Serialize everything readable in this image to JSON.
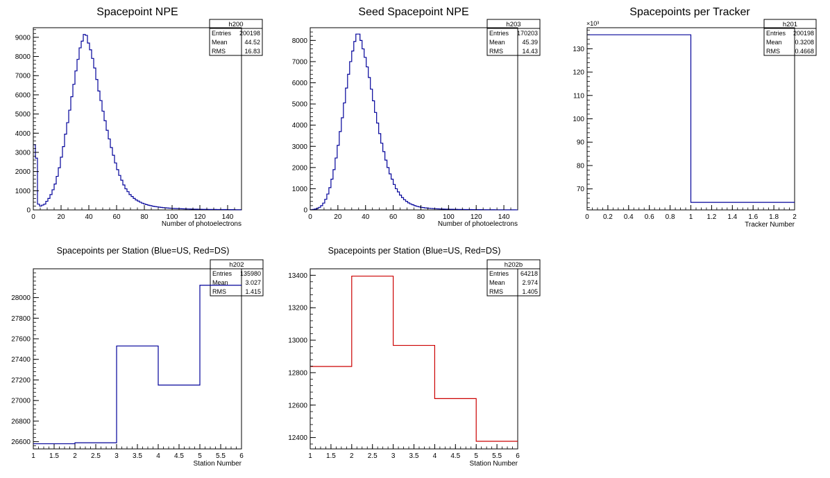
{
  "chart_data": [
    {
      "type": "histogram",
      "title": "Spacepoint NPE",
      "xlabel": "Number of photoelectrons",
      "ylabel": "",
      "xlim": [
        0,
        150
      ],
      "ylim": [
        0,
        9500
      ],
      "xticks": [
        "0",
        "20",
        "40",
        "60",
        "80",
        "100",
        "120",
        "140"
      ],
      "yticks": [
        "0",
        "1000",
        "2000",
        "3000",
        "4000",
        "5000",
        "6000",
        "7000",
        "8000",
        "9000"
      ],
      "bin_width": 1.5,
      "color": "#000099",
      "values": [
        3400,
        2700,
        300,
        200,
        250,
        300,
        450,
        600,
        800,
        1050,
        1350,
        1750,
        2200,
        2750,
        3300,
        3950,
        4550,
        5200,
        5900,
        6550,
        7250,
        7850,
        8450,
        8800,
        9150,
        9100,
        8700,
        8350,
        7900,
        7400,
        6800,
        6200,
        5700,
        5150,
        4650,
        4150,
        3700,
        3250,
        2850,
        2450,
        2100,
        1800,
        1550,
        1300,
        1100,
        950,
        800,
        700,
        600,
        520,
        460,
        400,
        350,
        310,
        275,
        245,
        220,
        195,
        175,
        160,
        145,
        130,
        118,
        108,
        99,
        91,
        84,
        78,
        72,
        67,
        62,
        58,
        54,
        50,
        47,
        44,
        41,
        38,
        36,
        34,
        32,
        30,
        28,
        26,
        25,
        24,
        23,
        22,
        21,
        20,
        19,
        18,
        17,
        16,
        15,
        14,
        13,
        12,
        11,
        10
      ],
      "stats": {
        "name": "h200",
        "rows": [
          [
            "Entries",
            "200198"
          ],
          [
            "Mean",
            "44.52"
          ],
          [
            "RMS",
            "16.83"
          ]
        ]
      }
    },
    {
      "type": "histogram",
      "title": "Seed Spacepoint NPE",
      "xlabel": "Number of photoelectrons",
      "ylabel": "",
      "xlim": [
        0,
        150
      ],
      "ylim": [
        0,
        8600
      ],
      "xticks": [
        "0",
        "20",
        "40",
        "60",
        "80",
        "100",
        "120",
        "140"
      ],
      "yticks": [
        "0",
        "1000",
        "2000",
        "3000",
        "4000",
        "5000",
        "6000",
        "7000",
        "8000"
      ],
      "bin_width": 1.5,
      "color": "#000099",
      "values": [
        10,
        20,
        40,
        70,
        120,
        200,
        320,
        500,
        750,
        1050,
        1450,
        1900,
        2450,
        3050,
        3700,
        4350,
        5050,
        5750,
        6400,
        7000,
        7500,
        7950,
        8300,
        8300,
        8000,
        7600,
        7200,
        6750,
        6250,
        5700,
        5150,
        4600,
        4100,
        3600,
        3150,
        2750,
        2350,
        2000,
        1700,
        1450,
        1200,
        1000,
        850,
        700,
        580,
        480,
        400,
        330,
        280,
        240,
        200,
        170,
        145,
        125,
        110,
        95,
        85,
        75,
        68,
        61,
        55,
        50,
        46,
        42,
        38,
        35,
        32,
        30,
        28,
        26,
        24,
        22,
        21,
        20,
        19,
        18,
        17,
        16,
        15,
        14,
        13,
        12,
        11,
        10,
        10,
        9,
        9,
        8,
        8,
        7,
        7,
        6,
        6,
        5,
        5,
        4,
        4,
        3,
        3,
        2
      ],
      "stats": {
        "name": "h203",
        "rows": [
          [
            "Entries",
            "170203"
          ],
          [
            "Mean",
            "45.39"
          ],
          [
            "RMS",
            "14.43"
          ]
        ]
      }
    },
    {
      "type": "histogram",
      "title": "Spacepoints per Tracker",
      "xlabel": "Tracker Number",
      "ylabel": "",
      "exponent_label": "×10³",
      "xlim": [
        0,
        2
      ],
      "ylim": [
        61,
        139
      ],
      "xticks": [
        "0",
        "0.2",
        "0.4",
        "0.6",
        "0.8",
        "1",
        "1.2",
        "1.4",
        "1.6",
        "1.8",
        "2"
      ],
      "yticks": [
        "70",
        "80",
        "90",
        "100",
        "110",
        "120",
        "130"
      ],
      "bin_width": 1,
      "color": "#000099",
      "values": [
        135.98,
        64.218
      ],
      "stats": {
        "name": "h201",
        "rows": [
          [
            "Entries",
            "200198"
          ],
          [
            "Mean",
            "0.3208"
          ],
          [
            "RMS",
            "0.4668"
          ]
        ]
      }
    },
    {
      "type": "histogram",
      "title": "Spacepoints per Station (Blue=US, Red=DS)",
      "xlabel": "Station Number",
      "ylabel": "",
      "xlim": [
        1,
        6
      ],
      "ylim": [
        26530,
        28280
      ],
      "xticks": [
        "1",
        "1.5",
        "2",
        "2.5",
        "3",
        "3.5",
        "4",
        "4.5",
        "5",
        "5.5",
        "6"
      ],
      "yticks": [
        "26600",
        "26800",
        "27000",
        "27200",
        "27400",
        "27600",
        "27800",
        "28000"
      ],
      "bin_width": 1,
      "color": "#000099",
      "values": [
        26580,
        26590,
        27530,
        27150,
        28120
      ],
      "stats": {
        "name": "h202",
        "rows": [
          [
            "Entries",
            "135980"
          ],
          [
            "Mean",
            "3.027"
          ],
          [
            "RMS",
            "1.415"
          ]
        ]
      }
    },
    {
      "type": "histogram",
      "title": "Spacepoints per Station (Blue=US, Red=DS)",
      "xlabel": "Station Number",
      "ylabel": "",
      "xlim": [
        1,
        6
      ],
      "ylim": [
        12330,
        13440
      ],
      "xticks": [
        "1",
        "1.5",
        "2",
        "2.5",
        "3",
        "3.5",
        "4",
        "4.5",
        "5",
        "5.5",
        "6"
      ],
      "yticks": [
        "12400",
        "12600",
        "12800",
        "13000",
        "13200",
        "13400"
      ],
      "bin_width": 1,
      "color": "#cc0000",
      "values": [
        12838,
        13395,
        12968,
        12640,
        12377
      ],
      "stats": {
        "name": "h202b",
        "rows": [
          [
            "Entries",
            "64218"
          ],
          [
            "Mean",
            "2.974"
          ],
          [
            "RMS",
            "1.405"
          ]
        ]
      }
    }
  ]
}
